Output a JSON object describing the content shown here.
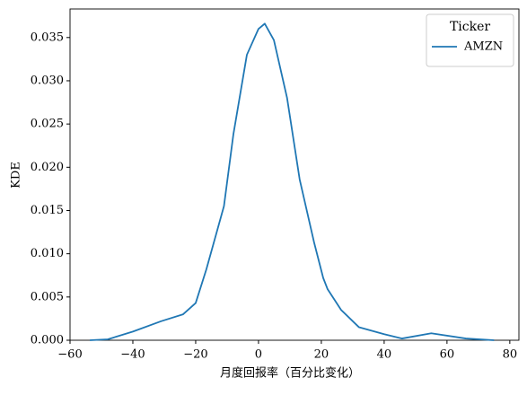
{
  "chart_data": {
    "type": "line",
    "xlabel": "月度回报率（百分比变化）",
    "ylabel": "KDE",
    "legend_title": "Ticker",
    "legend_loc": "upper right",
    "series": [
      {
        "name": "AMZN",
        "color": "#1f77b4",
        "x": [
          -53.7,
          -48,
          -40,
          -31,
          -24,
          -20,
          -16.6,
          -11,
          -8,
          -3.7,
          0,
          2,
          4.9,
          9.1,
          13.1,
          17.7,
          20.6,
          22,
          26.3,
          32,
          40,
          45.7,
          55,
          66,
          75
        ],
        "values": [
          0,
          0.0001,
          0.001,
          0.0022,
          0.003,
          0.0043,
          0.0082,
          0.0155,
          0.0238,
          0.033,
          0.036,
          0.0366,
          0.0347,
          0.028,
          0.0186,
          0.0113,
          0.0072,
          0.0059,
          0.0035,
          0.0015,
          0.0007,
          0.0002,
          0.0008,
          0.0002,
          0
        ]
      }
    ],
    "xlim": [
      -60,
      82.9
    ],
    "ylim": [
      0,
      0.0383
    ],
    "xticks": [
      {
        "value": -60,
        "label": "−60"
      },
      {
        "value": -40,
        "label": "−40"
      },
      {
        "value": -20,
        "label": "−20"
      },
      0,
      20,
      40,
      60,
      80
    ],
    "yticks": [
      {
        "value": 0,
        "label": "0.000"
      },
      {
        "value": 0.005,
        "label": "0.005"
      },
      {
        "value": 0.01,
        "label": "0.010"
      },
      {
        "value": 0.015,
        "label": "0.015"
      },
      {
        "value": 0.02,
        "label": "0.020"
      },
      {
        "value": 0.025,
        "label": "0.025"
      },
      {
        "value": 0.03,
        "label": "0.030"
      },
      {
        "value": 0.035,
        "label": "0.035"
      }
    ]
  }
}
